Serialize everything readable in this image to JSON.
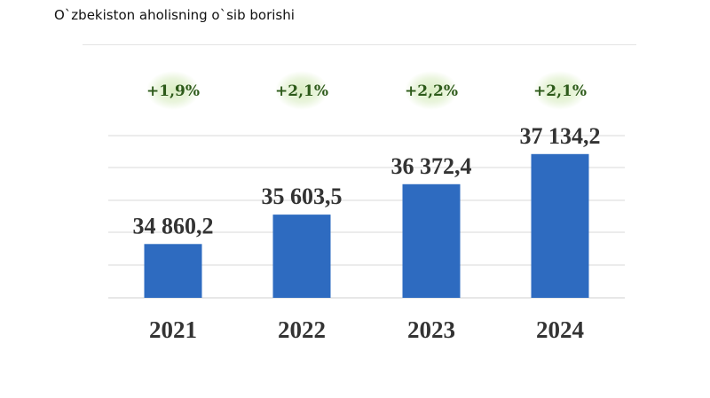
{
  "page": {
    "title": "O`zbekiston aholisning o`sib borishi"
  },
  "chart_data": {
    "type": "bar",
    "categories": [
      "2021",
      "2022",
      "2023",
      "2024"
    ],
    "values": [
      34860.2,
      35603.5,
      36372.4,
      37134.2
    ],
    "value_labels": [
      "34 860,2",
      "35 603,5",
      "36 372,4",
      "37 134,2"
    ],
    "growth_labels": [
      "+1,9%",
      "+2,1%",
      "+2,2%",
      "+2,1%"
    ],
    "title": "",
    "xlabel": "",
    "ylabel": "",
    "ylim": [
      33500,
      37600
    ],
    "grid": true,
    "legend": "none",
    "colors": {
      "bar": "#2e6bc0",
      "growth_text": "#2d5a1a",
      "growth_halo": "#d8ecc0",
      "label": "#333333",
      "grid": "#dadada"
    }
  }
}
